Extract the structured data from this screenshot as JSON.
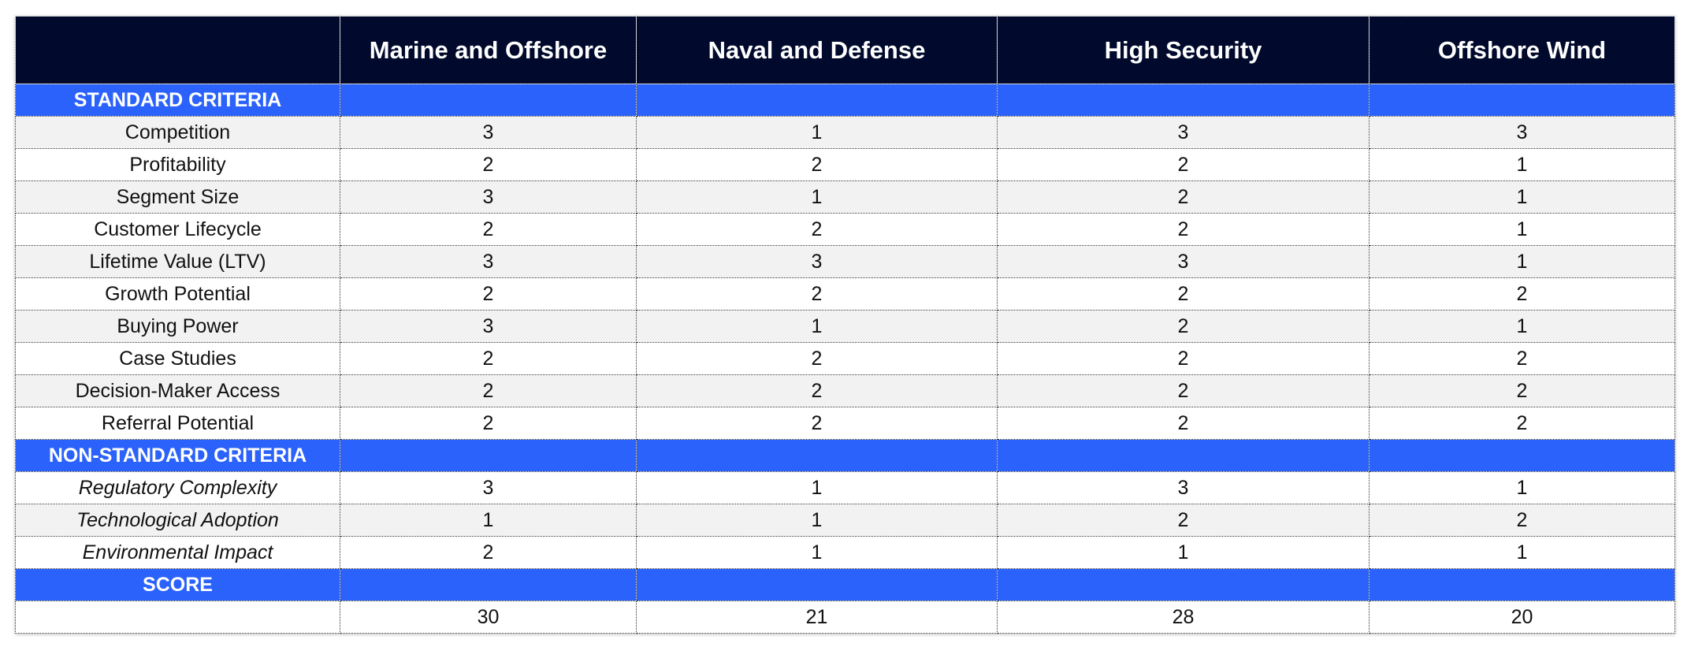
{
  "table": {
    "columns": [
      "Marine and Offshore",
      "Naval and Defense",
      "High Security",
      "Offshore Wind"
    ],
    "sections": [
      {
        "title": "STANDARD CRITERIA",
        "rows": [
          {
            "label": "Competition",
            "values": [
              3,
              1,
              3,
              3
            ]
          },
          {
            "label": "Profitability",
            "values": [
              2,
              2,
              2,
              1
            ]
          },
          {
            "label": "Segment Size",
            "values": [
              3,
              1,
              2,
              1
            ]
          },
          {
            "label": "Customer Lifecycle",
            "values": [
              2,
              2,
              2,
              1
            ]
          },
          {
            "label": "Lifetime Value (LTV)",
            "values": [
              3,
              3,
              3,
              1
            ]
          },
          {
            "label": "Growth Potential",
            "values": [
              2,
              2,
              2,
              2
            ]
          },
          {
            "label": "Buying Power",
            "values": [
              3,
              1,
              2,
              1
            ]
          },
          {
            "label": "Case Studies",
            "values": [
              2,
              2,
              2,
              2
            ]
          },
          {
            "label": "Decision-Maker Access",
            "values": [
              2,
              2,
              2,
              2
            ]
          },
          {
            "label": "Referral Potential",
            "values": [
              2,
              2,
              2,
              2
            ]
          }
        ]
      },
      {
        "title": "NON-STANDARD CRITERIA",
        "italic": true,
        "rows": [
          {
            "label": "Regulatory Complexity",
            "values": [
              3,
              1,
              3,
              1
            ]
          },
          {
            "label": "Technological Adoption",
            "values": [
              1,
              1,
              2,
              2
            ]
          },
          {
            "label": "Environmental Impact",
            "values": [
              2,
              1,
              1,
              1
            ]
          }
        ]
      },
      {
        "title": "SCORE",
        "rows": [
          {
            "values": [
              30,
              21,
              28,
              20
            ]
          }
        ]
      }
    ]
  }
}
